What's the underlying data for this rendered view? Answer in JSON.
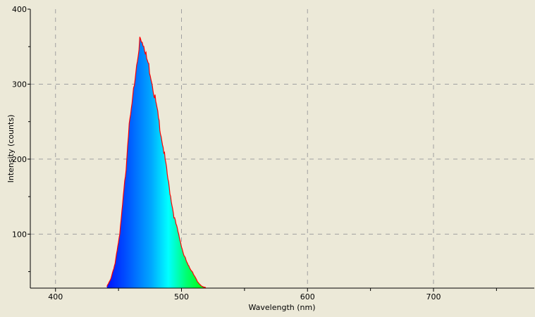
{
  "chart_data": {
    "type": "area",
    "title": "",
    "xlabel": "Wavelength (nm)",
    "ylabel": "Intensity (counts)",
    "xlim": [
      380,
      780
    ],
    "ylim": [
      28,
      400
    ],
    "xticks": [
      400,
      500,
      600,
      700
    ],
    "yticks": [
      100,
      200,
      300,
      400
    ],
    "grid": true,
    "legend": "none",
    "fill": "wavelength-colored spectrum",
    "outline_color": "#ff0000",
    "series": [
      {
        "x": [
          440.8,
          443.6,
          447.3,
          451,
          453.8,
          456.6,
          458.5,
          461.3,
          463.2,
          465,
          466.9,
          468.8,
          470.7,
          473.5,
          476.3,
          479,
          482.8,
          486.5,
          490.3,
          494,
          497.8,
          501.5,
          505.3,
          509,
          512.7,
          516.5,
          519.3
        ],
        "y": [
          30,
          39,
          61,
          99,
          149,
          199,
          243,
          281,
          312,
          337,
          356,
          353,
          343,
          328,
          306,
          281,
          243,
          205,
          161,
          124,
          99,
          74,
          58,
          49,
          36,
          30,
          29
        ]
      }
    ]
  }
}
